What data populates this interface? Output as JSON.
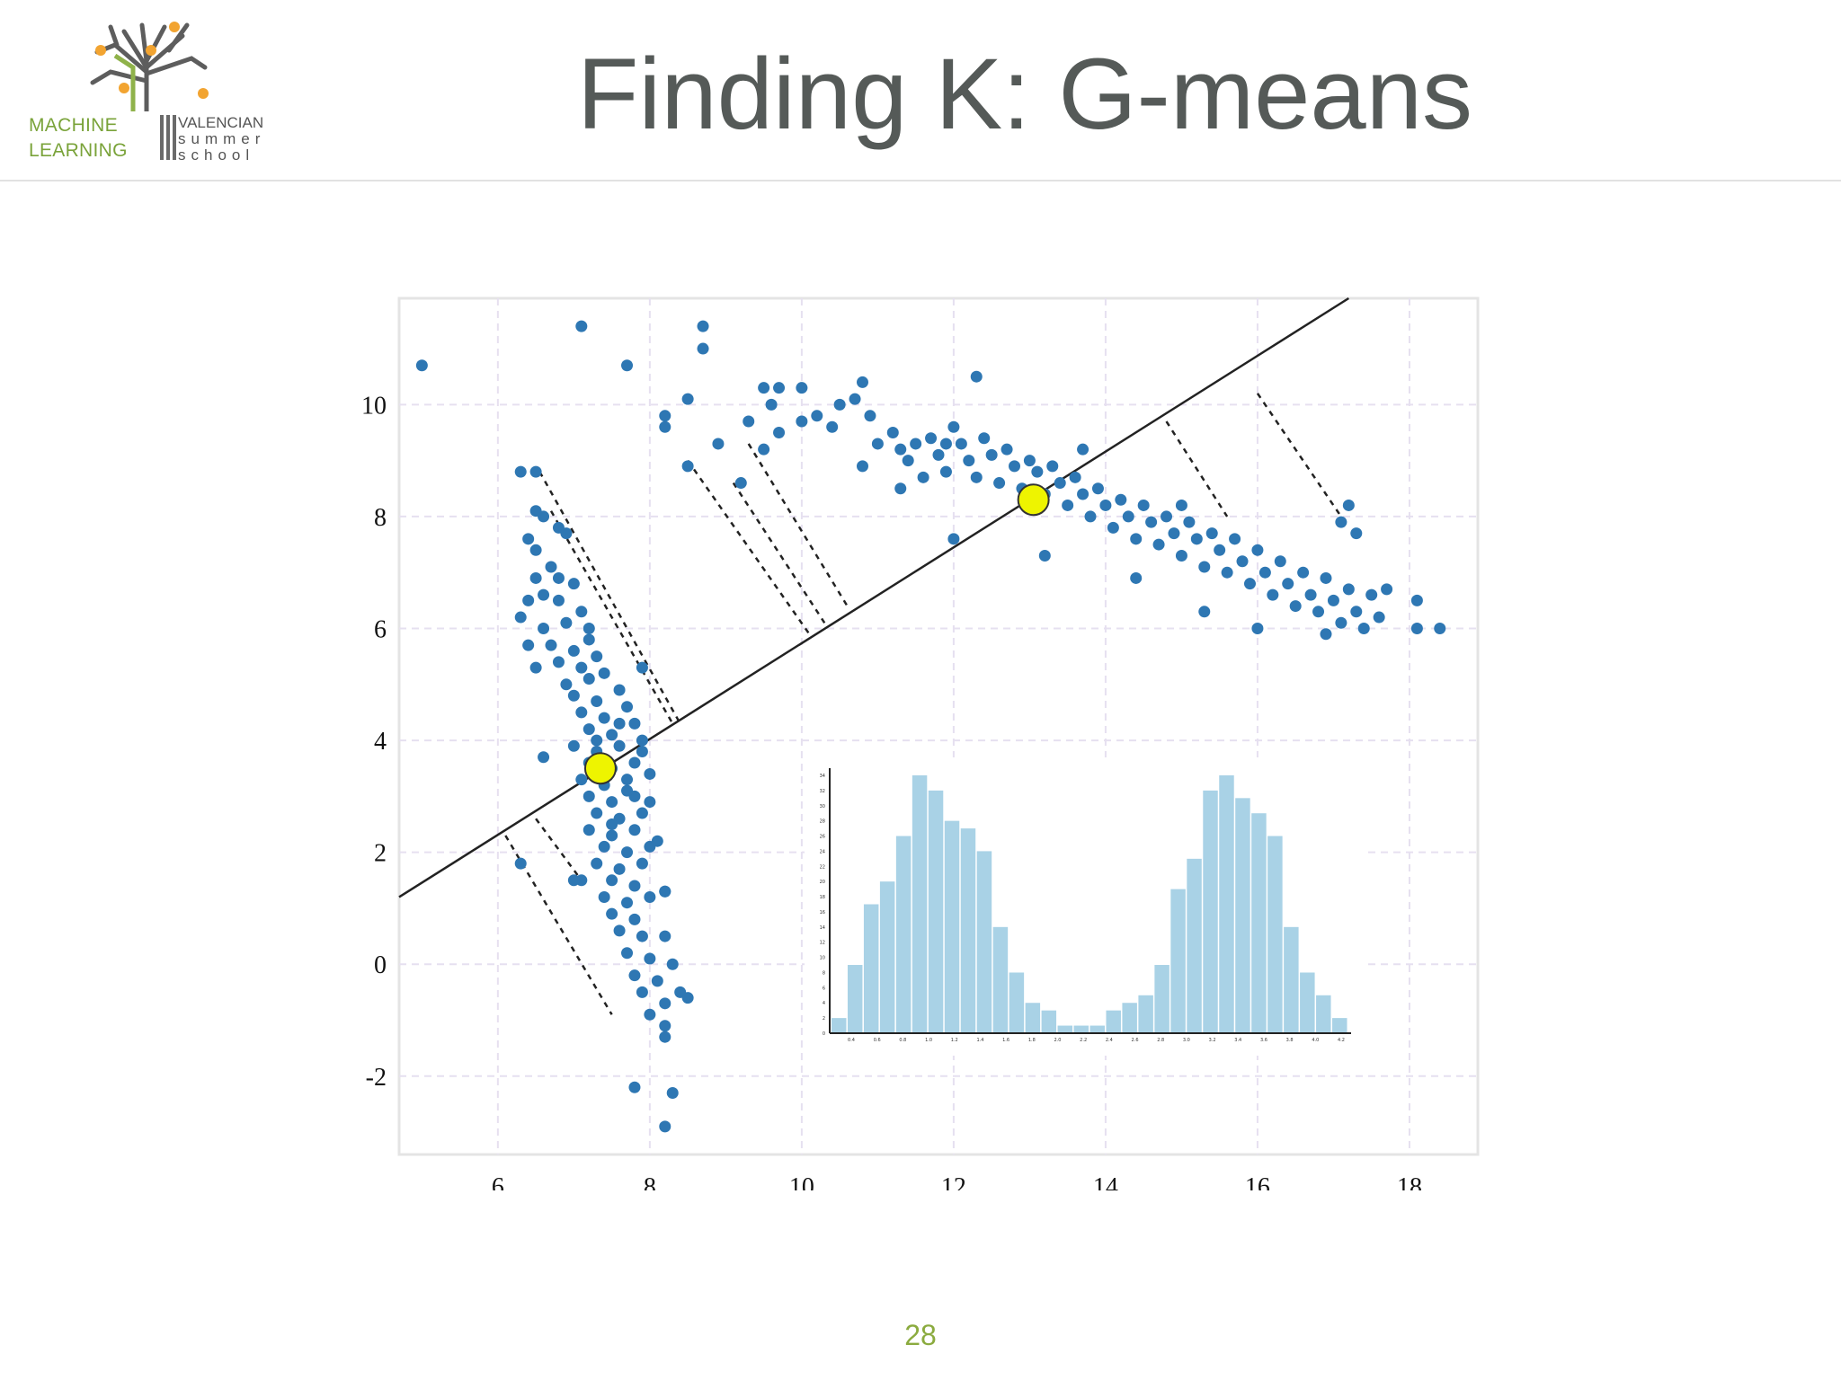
{
  "slide": {
    "title": "Finding K: G-means",
    "page_number": "28"
  },
  "logo": {
    "left_text": [
      "MACHINE",
      "LEARNING"
    ],
    "right_text": [
      "VALENCIAN",
      "summer",
      "school"
    ],
    "accent_color": "#7aa33a",
    "fruit_color": "#f2a431"
  },
  "colors": {
    "points": "#2e77b3",
    "centers": "#eef400",
    "histogram_bars": "#a9d2e6",
    "projection_line": "#222222"
  },
  "chart_data": {
    "type": "scatter",
    "xlim": [
      4.7,
      18.9
    ],
    "ylim": [
      -3.4,
      11.9
    ],
    "xticks": [
      "6",
      "8",
      "10",
      "12",
      "14",
      "16",
      "18"
    ],
    "yticks": [
      "10",
      "8",
      "6",
      "4",
      "2",
      "0",
      "-2"
    ],
    "grid": true,
    "points": [
      [
        5.0,
        10.7
      ],
      [
        7.1,
        11.4
      ],
      [
        7.7,
        10.7
      ],
      [
        8.7,
        11.4
      ],
      [
        8.7,
        11.0
      ],
      [
        8.2,
        9.8
      ],
      [
        8.5,
        10.1
      ],
      [
        8.2,
        9.6
      ],
      [
        8.5,
        8.9
      ],
      [
        8.9,
        9.3
      ],
      [
        9.2,
        8.6
      ],
      [
        9.3,
        9.7
      ],
      [
        9.5,
        10.3
      ],
      [
        9.7,
        10.3
      ],
      [
        9.7,
        9.5
      ],
      [
        9.5,
        9.2
      ],
      [
        9.6,
        10.0
      ],
      [
        10.0,
        10.3
      ],
      [
        10.0,
        9.7
      ],
      [
        10.2,
        9.8
      ],
      [
        10.4,
        9.6
      ],
      [
        10.5,
        10.0
      ],
      [
        10.7,
        10.1
      ],
      [
        10.8,
        10.4
      ],
      [
        10.9,
        9.8
      ],
      [
        11.0,
        9.3
      ],
      [
        11.2,
        9.5
      ],
      [
        11.3,
        9.2
      ],
      [
        11.4,
        9.0
      ],
      [
        11.5,
        9.3
      ],
      [
        11.6,
        8.7
      ],
      [
        11.7,
        9.4
      ],
      [
        11.8,
        9.1
      ],
      [
        11.9,
        8.8
      ],
      [
        12.0,
        9.6
      ],
      [
        12.1,
        9.3
      ],
      [
        12.2,
        9.0
      ],
      [
        12.3,
        8.7
      ],
      [
        12.4,
        9.4
      ],
      [
        12.5,
        9.1
      ],
      [
        12.6,
        8.6
      ],
      [
        12.7,
        9.2
      ],
      [
        12.8,
        8.9
      ],
      [
        12.9,
        8.5
      ],
      [
        13.0,
        9.0
      ],
      [
        13.1,
        8.8
      ],
      [
        13.2,
        8.4
      ],
      [
        13.3,
        8.9
      ],
      [
        13.4,
        8.6
      ],
      [
        13.5,
        8.2
      ],
      [
        13.6,
        8.7
      ],
      [
        13.7,
        8.4
      ],
      [
        13.8,
        8.0
      ],
      [
        13.9,
        8.5
      ],
      [
        14.0,
        8.2
      ],
      [
        14.1,
        7.8
      ],
      [
        14.2,
        8.3
      ],
      [
        14.3,
        8.0
      ],
      [
        14.4,
        7.6
      ],
      [
        14.5,
        8.2
      ],
      [
        14.6,
        7.9
      ],
      [
        14.7,
        7.5
      ],
      [
        14.8,
        8.0
      ],
      [
        14.9,
        7.7
      ],
      [
        15.0,
        7.3
      ],
      [
        15.1,
        7.9
      ],
      [
        15.2,
        7.6
      ],
      [
        15.3,
        7.1
      ],
      [
        15.4,
        7.7
      ],
      [
        15.5,
        7.4
      ],
      [
        15.6,
        7.0
      ],
      [
        15.7,
        7.6
      ],
      [
        15.8,
        7.2
      ],
      [
        15.9,
        6.8
      ],
      [
        16.0,
        7.4
      ],
      [
        16.1,
        7.0
      ],
      [
        16.2,
        6.6
      ],
      [
        16.3,
        7.2
      ],
      [
        16.4,
        6.8
      ],
      [
        16.5,
        6.4
      ],
      [
        16.6,
        7.0
      ],
      [
        16.7,
        6.6
      ],
      [
        16.8,
        6.3
      ],
      [
        16.9,
        6.9
      ],
      [
        17.0,
        6.5
      ],
      [
        17.1,
        6.1
      ],
      [
        17.2,
        6.7
      ],
      [
        17.3,
        6.3
      ],
      [
        17.4,
        6.0
      ],
      [
        17.5,
        6.6
      ],
      [
        17.6,
        6.2
      ],
      [
        17.7,
        6.7
      ],
      [
        17.2,
        8.2
      ],
      [
        17.1,
        7.9
      ],
      [
        17.3,
        7.7
      ],
      [
        18.1,
        6.5
      ],
      [
        18.1,
        6.0
      ],
      [
        18.4,
        6.0
      ],
      [
        16.0,
        6.0
      ],
      [
        16.9,
        5.9
      ],
      [
        11.9,
        9.3
      ],
      [
        12.3,
        10.5
      ],
      [
        11.3,
        8.5
      ],
      [
        10.8,
        8.9
      ],
      [
        12.0,
        7.6
      ],
      [
        13.7,
        9.2
      ],
      [
        13.2,
        7.3
      ],
      [
        15.0,
        8.2
      ],
      [
        15.3,
        6.3
      ],
      [
        14.4,
        6.9
      ],
      [
        6.3,
        8.8
      ],
      [
        6.5,
        8.8
      ],
      [
        6.5,
        8.1
      ],
      [
        6.6,
        8.0
      ],
      [
        6.8,
        7.8
      ],
      [
        6.4,
        7.6
      ],
      [
        6.5,
        7.4
      ],
      [
        6.9,
        7.7
      ],
      [
        6.7,
        7.1
      ],
      [
        6.5,
        6.9
      ],
      [
        6.6,
        6.6
      ],
      [
        6.8,
        6.9
      ],
      [
        7.0,
        6.8
      ],
      [
        6.4,
        6.5
      ],
      [
        6.3,
        6.2
      ],
      [
        6.8,
        6.5
      ],
      [
        7.1,
        6.3
      ],
      [
        6.6,
        6.0
      ],
      [
        6.9,
        6.1
      ],
      [
        7.2,
        6.0
      ],
      [
        6.4,
        5.7
      ],
      [
        6.7,
        5.7
      ],
      [
        7.0,
        5.6
      ],
      [
        7.2,
        5.8
      ],
      [
        6.5,
        5.3
      ],
      [
        6.8,
        5.4
      ],
      [
        7.1,
        5.3
      ],
      [
        7.3,
        5.5
      ],
      [
        6.9,
        5.0
      ],
      [
        7.2,
        5.1
      ],
      [
        7.4,
        5.2
      ],
      [
        7.0,
        4.8
      ],
      [
        7.3,
        4.7
      ],
      [
        7.6,
        4.9
      ],
      [
        7.1,
        4.5
      ],
      [
        7.4,
        4.4
      ],
      [
        7.7,
        4.6
      ],
      [
        7.2,
        4.2
      ],
      [
        7.5,
        4.1
      ],
      [
        7.8,
        4.3
      ],
      [
        7.0,
        3.9
      ],
      [
        7.3,
        3.8
      ],
      [
        7.6,
        3.9
      ],
      [
        7.9,
        4.0
      ],
      [
        7.2,
        3.6
      ],
      [
        7.5,
        3.5
      ],
      [
        7.8,
        3.6
      ],
      [
        7.1,
        3.3
      ],
      [
        7.4,
        3.2
      ],
      [
        7.7,
        3.3
      ],
      [
        8.0,
        3.4
      ],
      [
        7.2,
        3.0
      ],
      [
        7.5,
        2.9
      ],
      [
        7.8,
        3.0
      ],
      [
        7.3,
        2.7
      ],
      [
        7.6,
        2.6
      ],
      [
        7.9,
        2.7
      ],
      [
        7.2,
        2.4
      ],
      [
        7.5,
        2.3
      ],
      [
        7.8,
        2.4
      ],
      [
        7.4,
        2.1
      ],
      [
        7.7,
        2.0
      ],
      [
        8.0,
        2.1
      ],
      [
        7.3,
        1.8
      ],
      [
        7.6,
        1.7
      ],
      [
        7.9,
        1.8
      ],
      [
        7.5,
        1.5
      ],
      [
        7.8,
        1.4
      ],
      [
        7.1,
        1.5
      ],
      [
        7.4,
        1.2
      ],
      [
        7.7,
        1.1
      ],
      [
        8.0,
        1.2
      ],
      [
        7.5,
        0.9
      ],
      [
        7.8,
        0.8
      ],
      [
        8.2,
        1.3
      ],
      [
        7.6,
        0.6
      ],
      [
        7.9,
        0.5
      ],
      [
        8.2,
        0.5
      ],
      [
        7.7,
        0.2
      ],
      [
        8.0,
        0.1
      ],
      [
        7.8,
        -0.2
      ],
      [
        8.1,
        -0.3
      ],
      [
        8.3,
        0.0
      ],
      [
        7.9,
        -0.5
      ],
      [
        8.2,
        -0.7
      ],
      [
        8.4,
        -0.5
      ],
      [
        8.0,
        -0.9
      ],
      [
        8.2,
        -1.1
      ],
      [
        8.2,
        -1.3
      ],
      [
        8.5,
        -0.6
      ],
      [
        7.8,
        -2.2
      ],
      [
        8.3,
        -2.3
      ],
      [
        8.2,
        -2.9
      ],
      [
        6.3,
        1.8
      ],
      [
        7.0,
        1.5
      ],
      [
        6.6,
        3.7
      ],
      [
        7.3,
        4.0
      ],
      [
        7.6,
        4.3
      ],
      [
        7.9,
        3.8
      ],
      [
        8.0,
        2.9
      ],
      [
        8.1,
        2.2
      ],
      [
        8.2,
        1.3
      ],
      [
        7.5,
        2.5
      ],
      [
        7.7,
        3.1
      ],
      [
        7.9,
        5.3
      ]
    ],
    "centers": [
      [
        7.35,
        3.5
      ],
      [
        13.05,
        8.3
      ]
    ],
    "projection_line": {
      "from": [
        4.7,
        1.2
      ],
      "to": [
        17.2,
        11.9
      ]
    },
    "projections": [
      [
        [
          6.55,
          8.8
        ],
        [
          8.4,
          4.3
        ]
      ],
      [
        [
          6.7,
          8.1
        ],
        [
          8.3,
          4.3
        ]
      ],
      [
        [
          8.5,
          9.0
        ],
        [
          10.1,
          5.9
        ]
      ],
      [
        [
          9.1,
          8.6
        ],
        [
          10.3,
          6.1
        ]
      ],
      [
        [
          9.3,
          9.3
        ],
        [
          10.6,
          6.4
        ]
      ],
      [
        [
          14.8,
          9.7
        ],
        [
          15.6,
          8.0
        ]
      ],
      [
        [
          16.0,
          10.2
        ],
        [
          17.1,
          8.0
        ]
      ],
      [
        [
          6.5,
          2.6
        ],
        [
          7.1,
          1.5
        ]
      ],
      [
        [
          6.1,
          2.3
        ],
        [
          7.5,
          -0.9
        ]
      ]
    ],
    "inset_histogram": {
      "type": "bar",
      "values": [
        2,
        9,
        17,
        20,
        26,
        34,
        32,
        28,
        27,
        24,
        14,
        8,
        4,
        3,
        1,
        1,
        1,
        3,
        4,
        5,
        9,
        19,
        23,
        32,
        34,
        31,
        29,
        26,
        14,
        8,
        5,
        2
      ],
      "ylim": [
        0,
        34
      ],
      "yticks": [
        "34",
        "32",
        "30",
        "28",
        "26",
        "24",
        "22",
        "20",
        "18",
        "16",
        "14",
        "12",
        "10",
        "8",
        "6",
        "4",
        "2",
        "0"
      ],
      "xticks": [
        "0.4",
        "0.6",
        "0.8",
        "1.0",
        "1.2",
        "1.4",
        "1.6",
        "1.8",
        "2.0",
        "2.2",
        "2.4",
        "2.6",
        "2.8",
        "3.0",
        "3.2",
        "3.4",
        "3.6",
        "3.8",
        "4.0",
        "4.2"
      ]
    }
  }
}
